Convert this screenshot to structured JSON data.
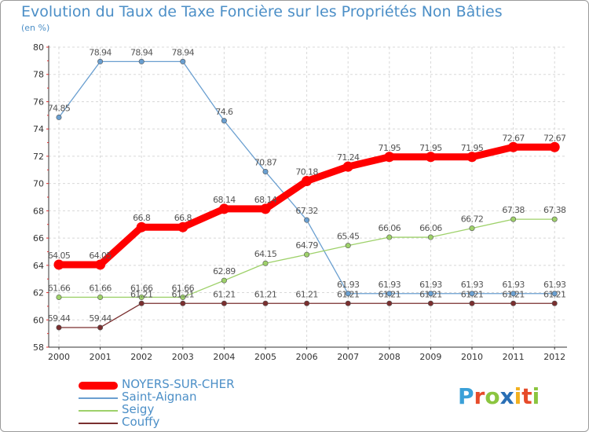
{
  "title": "Evolution du Taux de Taxe Foncière sur les Propriétés Non Bâties",
  "unit": "(en %)",
  "brand": {
    "letters": [
      "P",
      "r",
      "o",
      "x",
      "i",
      "t",
      "i"
    ],
    "colors": [
      "#3aa0d8",
      "#e64b2a",
      "#8bc53f",
      "#2a6fb5",
      "#f2b01e",
      "#e64b2a",
      "#8bc53f"
    ]
  },
  "chart_data": {
    "type": "line",
    "title": "Evolution du Taux de Taxe Foncière sur les Propriétés Non Bâties",
    "ylabel": "(en %)",
    "x": [
      "2000",
      "2001",
      "2002",
      "2003",
      "2004",
      "2005",
      "2006",
      "2007",
      "2008",
      "2009",
      "2010",
      "2011",
      "2012"
    ],
    "ylim": [
      58,
      80
    ],
    "yticks": [
      "58",
      "60",
      "62",
      "64",
      "66",
      "68",
      "70",
      "72",
      "74",
      "76",
      "78",
      "80"
    ],
    "series": [
      {
        "name": "NOYERS-SUR-CHER",
        "color": "#ff0000",
        "values": [
          64.05,
          64.05,
          66.8,
          66.8,
          68.14,
          68.14,
          70.18,
          71.24,
          71.95,
          71.95,
          71.95,
          72.67,
          72.67
        ],
        "labels": [
          "64.05",
          "64.05",
          "66.8",
          "66.8",
          "68.14",
          "68.14",
          "70.18",
          "71.24",
          "71.95",
          "71.95",
          "71.95",
          "72.67",
          "72.67"
        ]
      },
      {
        "name": "Saint-Aignan",
        "color": "#6a9fd0",
        "values": [
          74.85,
          78.94,
          78.94,
          78.94,
          74.6,
          70.87,
          67.32,
          61.93,
          61.93,
          61.93,
          61.93,
          61.93,
          61.93
        ],
        "labels": [
          "74.85",
          "78.94",
          "78.94",
          "78.94",
          "74.6",
          "70.87",
          "67.32",
          "61.93",
          "61.93",
          "61.93",
          "61.93",
          "61.93",
          "61.93"
        ]
      },
      {
        "name": "Seigy",
        "color": "#9ed16a",
        "values": [
          61.66,
          61.66,
          61.66,
          61.66,
          62.89,
          64.15,
          64.79,
          65.45,
          66.06,
          66.06,
          66.72,
          67.38,
          67.38
        ],
        "labels": [
          "61.66",
          "61.66",
          "61.66",
          "61.66",
          "62.89",
          "64.15",
          "64.79",
          "65.45",
          "66.06",
          "66.06",
          "66.72",
          "67.38",
          "67.38"
        ]
      },
      {
        "name": "Couffy",
        "color": "#7a2f2f",
        "values": [
          59.44,
          59.44,
          61.21,
          61.21,
          61.21,
          61.21,
          61.21,
          61.21,
          61.21,
          61.21,
          61.21,
          61.21,
          61.21
        ],
        "labels": [
          "59.44",
          "59.44",
          "61.21",
          "61.21",
          "61.21",
          "61.21",
          "61.21",
          "61.21",
          "61.21",
          "61.21",
          "61.21",
          "61.21",
          "61.21"
        ]
      }
    ]
  }
}
